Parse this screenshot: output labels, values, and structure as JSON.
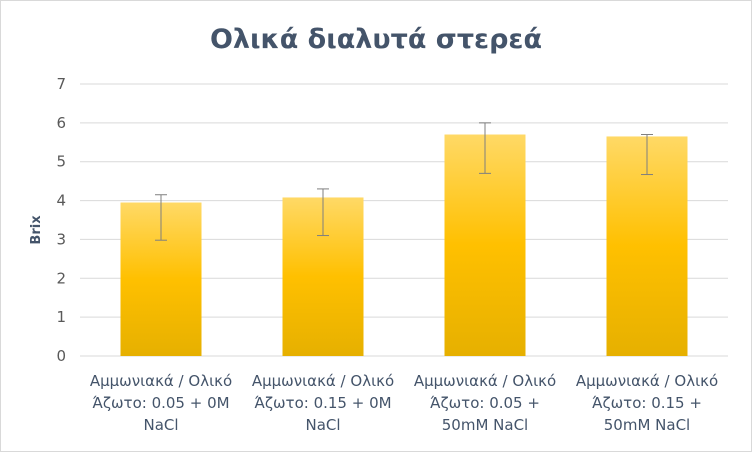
{
  "chart_data": {
    "type": "bar",
    "title": "Ολικά διαλυτά στερεά",
    "xlabel": "",
    "ylabel": "Brix",
    "ylim": [
      0,
      7
    ],
    "yticks": [
      0,
      1,
      2,
      3,
      4,
      5,
      6,
      7
    ],
    "grid": true,
    "legend": "none",
    "bar_color": "#ffc000",
    "bar_gradient": [
      "#ffd966",
      "#ffc000",
      "#e6b000"
    ],
    "errorbar_color": "#7f7f7f",
    "categories": [
      [
        "Αμμωνιακά / Ολικό",
        "Άζωτο: 0.05 +  0M",
        "NaCl"
      ],
      [
        "Αμμωνιακά / Ολικό",
        "Άζωτο: 0.15 +  0M",
        "NaCl"
      ],
      [
        "Αμμωνιακά / Ολικό",
        "Άζωτο: 0.05 +",
        "50mM NaCl"
      ],
      [
        "Αμμωνιακά / Ολικό",
        "Άζωτο: 0.15 +",
        "50mM NaCl"
      ]
    ],
    "values": [
      3.95,
      4.08,
      5.7,
      5.65
    ],
    "errors_upper": [
      0.2,
      0.22,
      0.3,
      0.05
    ],
    "errors_lower": [
      0.97,
      0.98,
      1.0,
      0.98
    ]
  }
}
